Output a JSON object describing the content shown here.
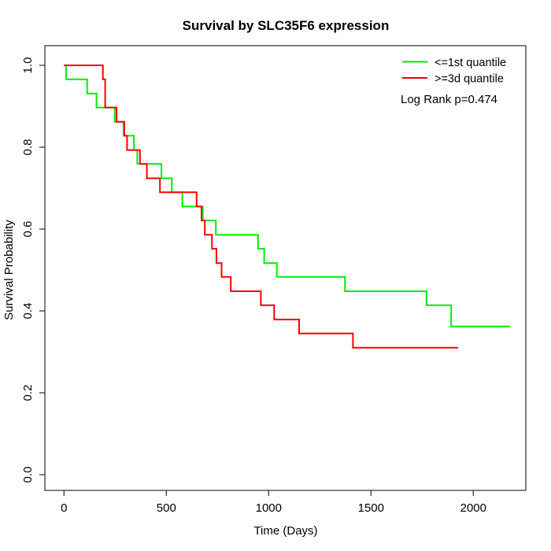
{
  "window": {
    "background": "#ffffff"
  },
  "chart_data": {
    "type": "line",
    "subtype": "kaplan-meier-step",
    "title": "Survival by SLC35F6 expression",
    "xlabel": "Time (Days)",
    "ylabel": "Survival Probability",
    "xlim": [
      0,
      2260
    ],
    "ylim": [
      0,
      1.04
    ],
    "xticks": [
      0,
      500,
      1000,
      1500,
      2000
    ],
    "yticks": [
      0.0,
      0.2,
      0.4,
      0.6,
      0.8,
      1.0
    ],
    "grid": false,
    "box": true,
    "axis_color": "#2b2b2b",
    "legend": {
      "position": "top-right",
      "border": false,
      "entries": [
        {
          "label": "<=1st quantile",
          "color": "#00ee00"
        },
        {
          "label": ">=3d quantile",
          "color": "#ff0000"
        }
      ]
    },
    "annotation": "Log Rank p=0.474",
    "series": [
      {
        "name": "<=1st quantile",
        "color": "#00ee00",
        "end_time": 2180,
        "steps": [
          [
            0,
            1.0
          ],
          [
            10,
            0.966
          ],
          [
            113,
            0.931
          ],
          [
            159,
            0.897
          ],
          [
            248,
            0.862
          ],
          [
            291,
            0.828
          ],
          [
            342,
            0.793
          ],
          [
            358,
            0.759
          ],
          [
            476,
            0.724
          ],
          [
            527,
            0.69
          ],
          [
            578,
            0.655
          ],
          [
            678,
            0.621
          ],
          [
            742,
            0.586
          ],
          [
            948,
            0.552
          ],
          [
            978,
            0.517
          ],
          [
            1040,
            0.483
          ],
          [
            1373,
            0.448
          ],
          [
            1771,
            0.414
          ],
          [
            1892,
            0.362
          ]
        ]
      },
      {
        "name": ">=3d quantile",
        "color": "#ff0000",
        "end_time": 1925,
        "steps": [
          [
            0,
            1.0
          ],
          [
            190,
            0.966
          ],
          [
            201,
            0.897
          ],
          [
            257,
            0.862
          ],
          [
            295,
            0.828
          ],
          [
            308,
            0.793
          ],
          [
            371,
            0.759
          ],
          [
            405,
            0.724
          ],
          [
            469,
            0.69
          ],
          [
            648,
            0.655
          ],
          [
            672,
            0.621
          ],
          [
            688,
            0.586
          ],
          [
            723,
            0.552
          ],
          [
            745,
            0.517
          ],
          [
            770,
            0.483
          ],
          [
            815,
            0.448
          ],
          [
            962,
            0.414
          ],
          [
            1027,
            0.379
          ],
          [
            1149,
            0.345
          ],
          [
            1412,
            0.31
          ]
        ]
      }
    ]
  }
}
